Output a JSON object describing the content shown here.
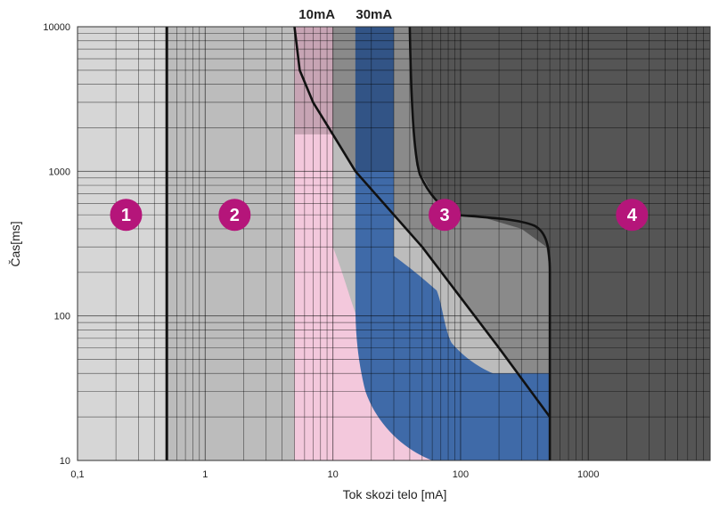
{
  "chart_data": {
    "type": "area",
    "title": "",
    "xlabel": "Tok skozi telo [mA]",
    "ylabel": "Čas[ms]",
    "x_scale": "log",
    "y_scale": "log",
    "xlim": [
      0.1,
      9000
    ],
    "ylim": [
      10,
      10000
    ],
    "grid": true,
    "x_ticks": [
      {
        "value": 0.1,
        "label": "0,1"
      },
      {
        "value": 1,
        "label": "1"
      },
      {
        "value": 10,
        "label": "10"
      },
      {
        "value": 100,
        "label": "100"
      },
      {
        "value": 1000,
        "label": "1000"
      }
    ],
    "y_ticks": [
      {
        "value": 10,
        "label": "10"
      },
      {
        "value": 100,
        "label": "100"
      },
      {
        "value": 1000,
        "label": "1000"
      },
      {
        "value": 10000,
        "label": "10000"
      }
    ],
    "top_labels": [
      {
        "text": "10mA",
        "x": 7.5
      },
      {
        "text": "30mA",
        "x": 21
      }
    ],
    "zones": [
      {
        "label": "1",
        "x": 0.24,
        "y": 500
      },
      {
        "label": "2",
        "x": 1.7,
        "y": 500
      },
      {
        "label": "3",
        "x": 75,
        "y": 500
      },
      {
        "label": "4",
        "x": 2200,
        "y": 500
      }
    ],
    "boundaries": [
      {
        "name": "zone-1-2",
        "points": [
          [
            0.5,
            10
          ],
          [
            0.5,
            10000
          ]
        ]
      },
      {
        "name": "zone-2-3",
        "points": [
          [
            5,
            10000
          ],
          [
            5.5,
            5000
          ],
          [
            7,
            3000
          ],
          [
            10,
            1800
          ],
          [
            15,
            1000
          ],
          [
            50,
            300
          ],
          [
            200,
            60
          ],
          [
            500,
            20
          ]
        ]
      },
      {
        "name": "zone-3-4",
        "points": [
          [
            40,
            10000
          ],
          [
            42,
            2000
          ],
          [
            45,
            1100
          ],
          [
            60,
            700
          ],
          [
            80,
            520
          ],
          [
            150,
            480
          ],
          [
            300,
            400
          ],
          [
            470,
            300
          ],
          [
            500,
            200
          ],
          [
            500,
            10
          ]
        ]
      }
    ],
    "bands": [
      {
        "name": "10mA",
        "x_from": 5,
        "x_to": 10,
        "color": "#f3c8dc"
      },
      {
        "name": "30mA",
        "x_from": 15,
        "x_to": 30,
        "color": "#3f6aa8"
      }
    ],
    "colors": {
      "zone1": "#d6d6d6",
      "zone2": "#bcbcbc",
      "zone3": "#8a8a8a",
      "zone4": "#555555",
      "pink": "#f3c8dc",
      "blue": "#3f6aa8",
      "circle": "#b5157a",
      "boundary": "#111111"
    }
  }
}
